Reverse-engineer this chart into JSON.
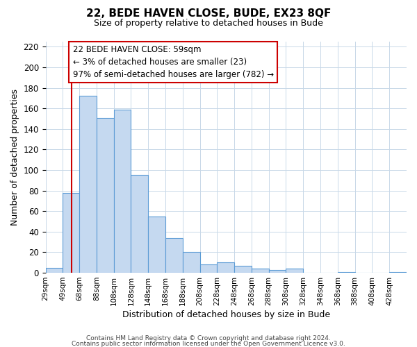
{
  "title": "22, BEDE HAVEN CLOSE, BUDE, EX23 8QF",
  "subtitle": "Size of property relative to detached houses in Bude",
  "xlabel": "Distribution of detached houses by size in Bude",
  "ylabel": "Number of detached properties",
  "bin_edges": [
    29,
    49,
    68,
    88,
    108,
    128,
    148,
    168,
    188,
    208,
    228,
    248,
    268,
    288,
    308,
    328,
    348,
    368,
    388,
    408,
    428,
    448
  ],
  "bin_counts": [
    5,
    78,
    172,
    151,
    159,
    95,
    55,
    34,
    20,
    8,
    10,
    7,
    4,
    3,
    4,
    0,
    0,
    1,
    0,
    0,
    1
  ],
  "bar_color": "#c5d9f0",
  "bar_edge_color": "#5b9bd5",
  "property_line_x": 59,
  "property_line_color": "#cc0000",
  "ylim": [
    0,
    225
  ],
  "yticks": [
    0,
    20,
    40,
    60,
    80,
    100,
    120,
    140,
    160,
    180,
    200,
    220
  ],
  "xtick_labels": [
    "29sqm",
    "49sqm",
    "68sqm",
    "88sqm",
    "108sqm",
    "128sqm",
    "148sqm",
    "168sqm",
    "188sqm",
    "208sqm",
    "228sqm",
    "248sqm",
    "268sqm",
    "288sqm",
    "308sqm",
    "328sqm",
    "348sqm",
    "368sqm",
    "388sqm",
    "408sqm",
    "428sqm"
  ],
  "annotation_line1": "22 BEDE HAVEN CLOSE: 59sqm",
  "annotation_line2": "← 3% of detached houses are smaller (23)",
  "annotation_line3": "97% of semi-detached houses are larger (782) →",
  "footer_line1": "Contains HM Land Registry data © Crown copyright and database right 2024.",
  "footer_line2": "Contains public sector information licensed under the Open Government Licence v3.0.",
  "background_color": "#ffffff",
  "grid_color": "#c8d8e8"
}
